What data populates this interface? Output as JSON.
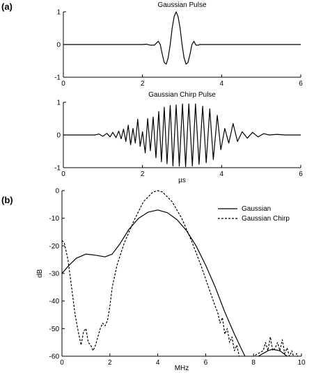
{
  "figure": {
    "panel_a_label": "(a)",
    "panel_b_label": "(b)"
  },
  "chart_data": [
    {
      "type": "line",
      "title": "Gaussian Pulse",
      "xlabel": "",
      "ylabel": "",
      "xlim": [
        0,
        6
      ],
      "ylim": [
        -1,
        1
      ],
      "xticks": [
        0,
        2,
        4,
        6
      ],
      "yticks": [
        -1,
        0,
        1
      ],
      "series": [
        {
          "line_style": "solid",
          "x": [
            0,
            2.0,
            2.1,
            2.2,
            2.3,
            2.4,
            2.45,
            2.5,
            2.55,
            2.6,
            2.65,
            2.7,
            2.75,
            2.8,
            2.85,
            2.9,
            2.95,
            3.0,
            3.05,
            3.1,
            3.15,
            3.2,
            3.25,
            3.3,
            3.35,
            3.4,
            3.45,
            3.5,
            3.55,
            3.6,
            3.7,
            3.8,
            3.9,
            4.0,
            6
          ],
          "y": [
            0,
            0,
            0.01,
            -0.02,
            -0.02,
            0.1,
            0.0,
            -0.3,
            -0.55,
            -0.6,
            -0.4,
            0.0,
            0.5,
            0.85,
            1.0,
            0.85,
            0.5,
            0.0,
            -0.4,
            -0.6,
            -0.55,
            -0.3,
            0.0,
            0.1,
            -0.02,
            -0.02,
            0.0,
            0.0,
            0.0,
            0.0,
            0.0,
            0.0,
            0.0,
            0.0,
            0
          ]
        }
      ]
    },
    {
      "type": "line",
      "title": "Gaussian Chirp Pulse",
      "xlabel": "µs",
      "ylabel": "",
      "xlim": [
        0,
        6
      ],
      "ylim": [
        -1,
        1
      ],
      "xticks": [
        0,
        2,
        4,
        6
      ],
      "yticks": [
        -1,
        0,
        1
      ],
      "series": [
        {
          "line_style": "solid",
          "x": [
            0,
            0.8,
            0.9,
            1.0,
            1.1,
            1.18,
            1.25,
            1.33,
            1.4,
            1.46,
            1.52,
            1.58,
            1.64,
            1.7,
            1.76,
            1.82,
            1.88,
            1.94,
            2.0,
            2.07,
            2.13,
            2.2,
            2.27,
            2.34,
            2.41,
            2.48,
            2.55,
            2.62,
            2.7,
            2.77,
            2.85,
            2.93,
            3.01,
            3.09,
            3.17,
            3.26,
            3.34,
            3.43,
            3.52,
            3.61,
            3.7,
            3.79,
            3.89,
            3.98,
            4.08,
            4.18,
            4.29,
            4.4,
            4.52,
            4.65,
            4.78,
            4.92,
            5.06,
            5.2,
            5.4,
            5.6,
            6
          ],
          "y": [
            0,
            0,
            0.03,
            -0.04,
            0.05,
            -0.06,
            0.08,
            -0.08,
            0.12,
            -0.12,
            0.18,
            -0.2,
            0.3,
            -0.3,
            0.2,
            -0.25,
            0.48,
            -0.35,
            0.1,
            -0.55,
            0.5,
            -0.48,
            0.55,
            -0.7,
            0.72,
            -0.82,
            0.85,
            -0.88,
            0.9,
            -0.95,
            0.92,
            -0.95,
            0.95,
            -0.97,
            0.95,
            -0.95,
            0.95,
            -0.9,
            0.88,
            -0.85,
            0.8,
            -0.75,
            0.6,
            -0.45,
            0.2,
            -0.25,
            0.35,
            -0.2,
            0.1,
            -0.1,
            0.08,
            -0.06,
            0.04,
            0.0,
            0.02,
            0.0,
            0
          ]
        }
      ]
    },
    {
      "type": "line",
      "title": "",
      "xlabel": "MHz",
      "ylabel": "dB",
      "xlim": [
        0,
        10
      ],
      "ylim": [
        -60,
        0
      ],
      "xticks": [
        0,
        2,
        4,
        6,
        8,
        10
      ],
      "yticks": [
        0,
        -10,
        -20,
        -30,
        -40,
        -50,
        -60
      ],
      "legend": "top-right",
      "series": [
        {
          "name": "Gaussian",
          "line_style": "solid",
          "x": [
            0,
            0.3,
            0.6,
            1.0,
            1.4,
            1.8,
            2.1,
            2.4,
            2.8,
            3.2,
            3.6,
            4.0,
            4.4,
            4.8,
            5.2,
            5.6,
            6.0,
            6.4,
            6.8,
            7.2,
            7.5,
            7.7,
            8.0,
            8.3,
            8.6,
            8.8,
            9.1,
            9.4,
            9.7,
            10
          ],
          "y": [
            -30,
            -27,
            -24.5,
            -23,
            -23.4,
            -24,
            -23,
            -19.5,
            -14,
            -10,
            -7.8,
            -7,
            -8,
            -10.5,
            -14.5,
            -20,
            -27,
            -35,
            -44,
            -52,
            -57.5,
            -61,
            -61,
            -59.5,
            -58,
            -57.5,
            -58,
            -60,
            -62,
            -62
          ]
        },
        {
          "name": "Gaussian Chirp",
          "line_style": "dashed",
          "x": [
            0,
            0.1,
            0.25,
            0.4,
            0.55,
            0.7,
            0.8,
            0.9,
            1.0,
            1.1,
            1.2,
            1.3,
            1.4,
            1.5,
            1.6,
            1.7,
            1.8,
            1.9,
            2.0,
            2.1,
            2.3,
            2.6,
            3.0,
            3.4,
            3.8,
            4.0,
            4.2,
            4.6,
            5.0,
            5.4,
            5.8,
            6.2,
            6.4,
            6.5,
            6.6,
            6.7,
            6.8,
            6.9,
            7.0,
            7.1,
            7.2,
            7.3,
            7.4,
            7.6,
            7.8,
            8.0,
            8.2,
            8.4,
            8.5,
            8.6,
            8.7,
            8.8,
            8.9,
            9.0,
            9.1,
            9.2,
            9.3,
            9.4,
            9.5,
            9.6,
            9.7,
            9.8,
            9.9,
            10
          ],
          "y": [
            -18,
            -19,
            -25,
            -35,
            -45,
            -52,
            -56,
            -51,
            -50,
            -55,
            -56,
            -58,
            -56,
            -53,
            -50,
            -48,
            -49,
            -47,
            -42,
            -35,
            -27,
            -19,
            -11,
            -4,
            -0.5,
            0,
            -0.5,
            -4,
            -10,
            -18,
            -27,
            -37,
            -42,
            -44,
            -48,
            -46,
            -52,
            -50,
            -55,
            -53,
            -58,
            -56,
            -60,
            -62,
            -61,
            -60,
            -59,
            -58,
            -55,
            -58,
            -53,
            -58,
            -57,
            -55,
            -58,
            -54,
            -59,
            -57,
            -60,
            -58,
            -61,
            -59,
            -61,
            -60
          ]
        }
      ]
    }
  ]
}
